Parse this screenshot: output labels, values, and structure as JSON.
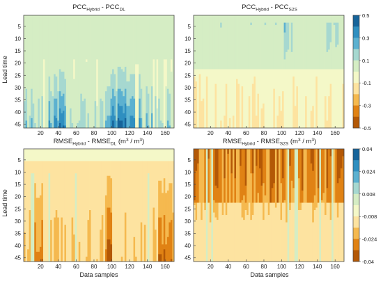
{
  "chart_data": [
    {
      "type": "heatmap",
      "title": "PCC_Hybrid - PCC_DL",
      "title_parts": {
        "a": "PCC",
        "a_sub": "Hybrid",
        "mid": " - PCC",
        "b_sub": "DL"
      },
      "ylabel": "Lead time",
      "xlabel": "",
      "x_ticks": [
        "20",
        "40",
        "60",
        "80",
        "100",
        "120",
        "140",
        "160"
      ],
      "y_ticks": [
        "5",
        "10",
        "15",
        "20",
        "25",
        "30",
        "35",
        "40",
        "45"
      ],
      "xlim": [
        1,
        170
      ],
      "ylim": [
        1,
        46
      ],
      "colorbar_ticks": [
        "0.5",
        "0.3",
        "0.1",
        "-0.1",
        "-0.3",
        "-0.5"
      ],
      "vmin": -0.5,
      "vmax": 0.5,
      "pattern": "positive differences grow with lead time; strongest (0.3 to 0.5) near samples 30-45 and 100-130 at lead times 25-46; near 0 for lead times 1-15"
    },
    {
      "type": "heatmap",
      "title": "PCC_Hybrid - PCC_S2S",
      "title_parts": {
        "a": "PCC",
        "a_sub": "Hybrid",
        "mid": " - PCC",
        "b_sub": "S2S"
      },
      "ylabel": "",
      "xlabel": "",
      "x_ticks": [
        "20",
        "40",
        "60",
        "80",
        "100",
        "120",
        "140",
        "160"
      ],
      "y_ticks": [
        "5",
        "10",
        "15",
        "20",
        "25",
        "30",
        "35",
        "40",
        "45"
      ],
      "xlim": [
        1,
        170
      ],
      "ylim": [
        1,
        46
      ],
      "colorbar_ticks": [
        "0.5",
        "0.3",
        "0.1",
        "-0.1",
        "-0.3",
        "-0.5"
      ],
      "vmin": -0.5,
      "vmax": 0.5,
      "pattern": "positive values concentrated at lead times 1-25 with strong vertical streaks near samples 100-110 and 150-165; slightly negative (-0.1 to 0) at longer lead times"
    },
    {
      "type": "heatmap",
      "title": "RMSE_Hybrid - RMSE_DL (m3 / m3)",
      "title_parts": {
        "a": "RMSE",
        "a_sub": "Hybrid",
        "mid": " - RMSE",
        "b_sub": "DL",
        "unit": " (m",
        "unit_sup": "3",
        "unit_mid": " / m",
        "unit_sup2": "3",
        "unit_end": ")"
      },
      "ylabel": "Lead time",
      "xlabel": "Data samples",
      "x_ticks": [
        "20",
        "40",
        "60",
        "80",
        "100",
        "120",
        "140",
        "160"
      ],
      "y_ticks": [
        "5",
        "10",
        "15",
        "20",
        "25",
        "30",
        "35",
        "40",
        "45"
      ],
      "xlim": [
        1,
        170
      ],
      "ylim": [
        1,
        46
      ],
      "colorbar_ticks": [
        "0.04",
        "0.024",
        "0.008",
        "-0.008",
        "-0.024",
        "-0.04"
      ],
      "vmin": -0.04,
      "vmax": 0.04,
      "pattern": "mostly slightly negative (-0.008 to -0.024); more negative at longer lead times, darkest streaks near samples 10-20 and 95-100 and 155-165 at lead times 35-46"
    },
    {
      "type": "heatmap",
      "title": "RMSE_Hybrid - RMSE_S2S (m3 / m3)",
      "title_parts": {
        "a": "RMSE",
        "a_sub": "Hybrid",
        "mid": " - RMSE",
        "b_sub": "S2S",
        "unit": " (m",
        "unit_sup": "3",
        "unit_mid": " / m",
        "unit_sup2": "3",
        "unit_end": ")"
      },
      "ylabel": "",
      "xlabel": "Data samples",
      "x_ticks": [
        "20",
        "40",
        "60",
        "80",
        "100",
        "120",
        "140",
        "160"
      ],
      "y_ticks": [
        "5",
        "10",
        "15",
        "20",
        "25",
        "30",
        "35",
        "40",
        "45"
      ],
      "xlim": [
        1,
        170
      ],
      "ylim": [
        1,
        46
      ],
      "colorbar_ticks": [
        "0.04",
        "0.024",
        "0.008",
        "-0.008",
        "-0.024",
        "-0.04"
      ],
      "vmin": -0.04,
      "vmax": 0.04,
      "pattern": "strongly negative (-0.024 to -0.04) at lead times 1-20 with dark vertical streaks across all samples; moderately negative (-0.008 to -0.024) at longer lead times"
    }
  ],
  "colormap": [
    "#b35806",
    "#e08214",
    "#f5b94f",
    "#fde3a0",
    "#f4f8c8",
    "#d5edc4",
    "#a6d8d0",
    "#5cb1d0",
    "#2f8fc0",
    "#17649a"
  ]
}
